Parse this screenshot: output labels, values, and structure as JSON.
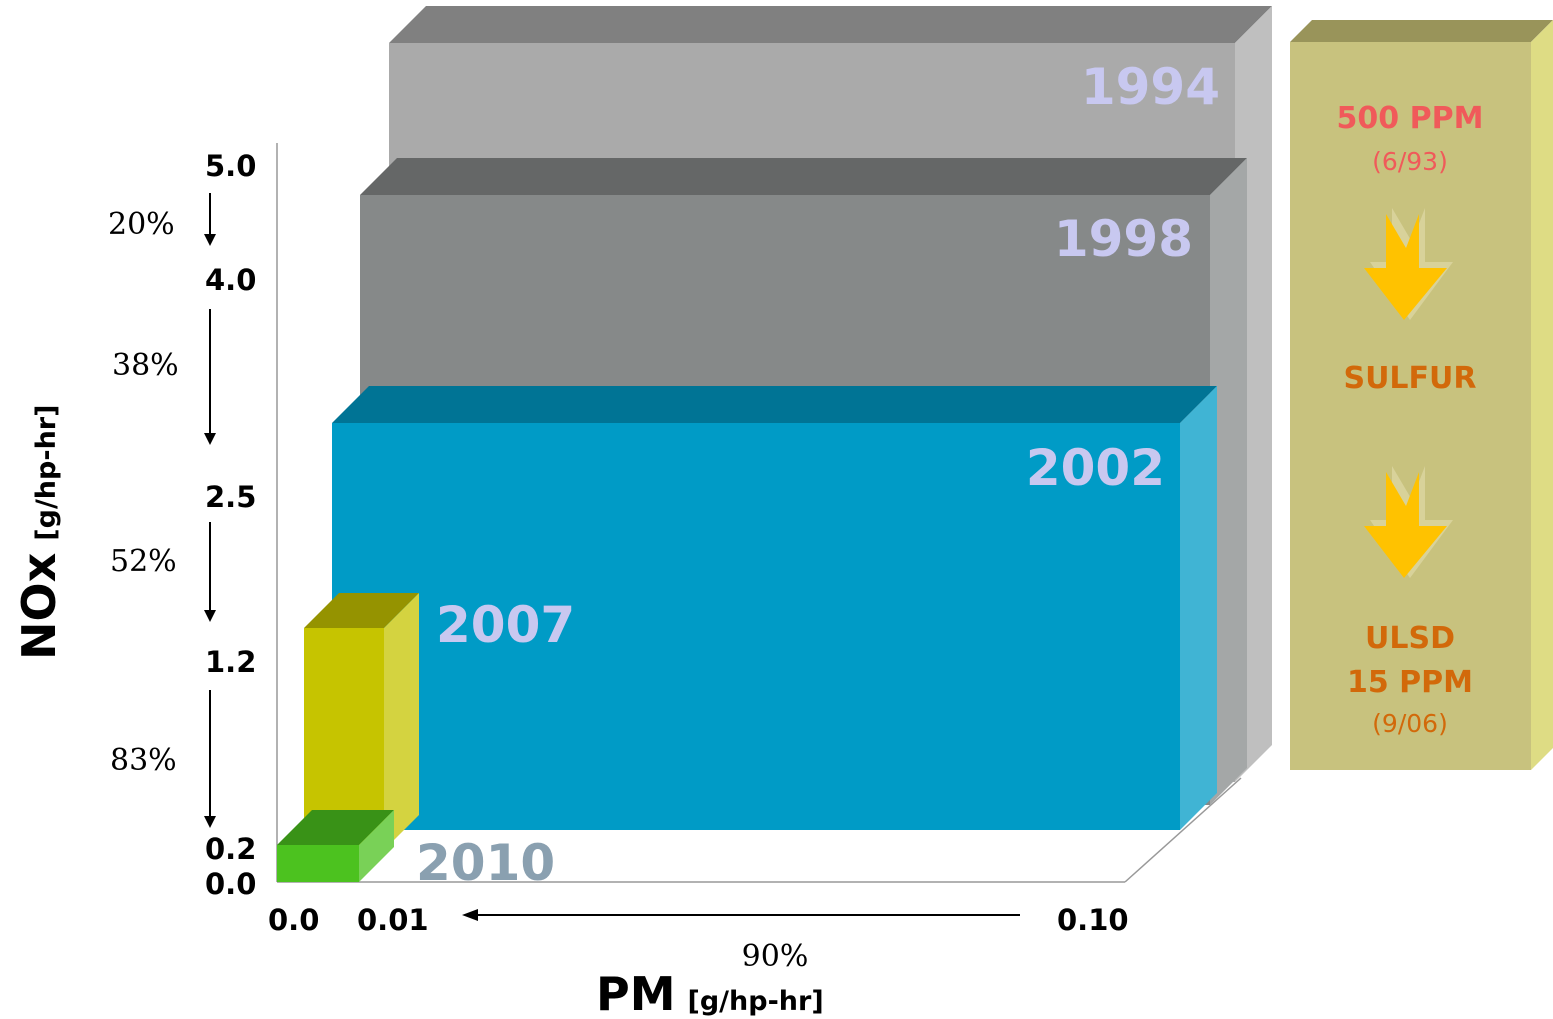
{
  "chart_data": {
    "type": "bar",
    "title": "",
    "xlabel": "PM",
    "xlabel_unit": "[g/hp-hr]",
    "ylabel": "NOx",
    "ylabel_unit": "[g/hp-hr]",
    "xlim": [
      0.0,
      0.1
    ],
    "ylim": [
      0.0,
      5.0
    ],
    "x_ticks": [
      "0.0",
      "0.01",
      "0.10"
    ],
    "y_ticks": [
      "0.0",
      "0.2",
      "1.2",
      "2.5",
      "4.0",
      "5.0"
    ],
    "series": [
      {
        "name": "1994",
        "pm": 0.1,
        "nox": 5.0,
        "color": "#aaaaaa"
      },
      {
        "name": "1998",
        "pm": 0.1,
        "nox": 4.0,
        "color": "#868989"
      },
      {
        "name": "2002",
        "pm": 0.1,
        "nox": 2.5,
        "color": "#009bc6"
      },
      {
        "name": "2007",
        "pm": 0.01,
        "nox": 1.2,
        "color": "#c6c400"
      },
      {
        "name": "2010",
        "pm": 0.01,
        "nox": 0.2,
        "color": "#4cc21f"
      }
    ],
    "nox_reductions": [
      "20%",
      "38%",
      "52%",
      "83%"
    ],
    "pm_reduction": "90%"
  },
  "sulfur_panel": {
    "top_label": "500 PPM",
    "top_date": "(6/93)",
    "middle_label": "SULFUR",
    "bottom_label_line1": "ULSD",
    "bottom_label_line2": "15 PPM",
    "bottom_date": "(9/06)",
    "colors": {
      "panel": "#c8c27e",
      "top_text": "#f05a5a",
      "text": "#d2690a"
    }
  }
}
